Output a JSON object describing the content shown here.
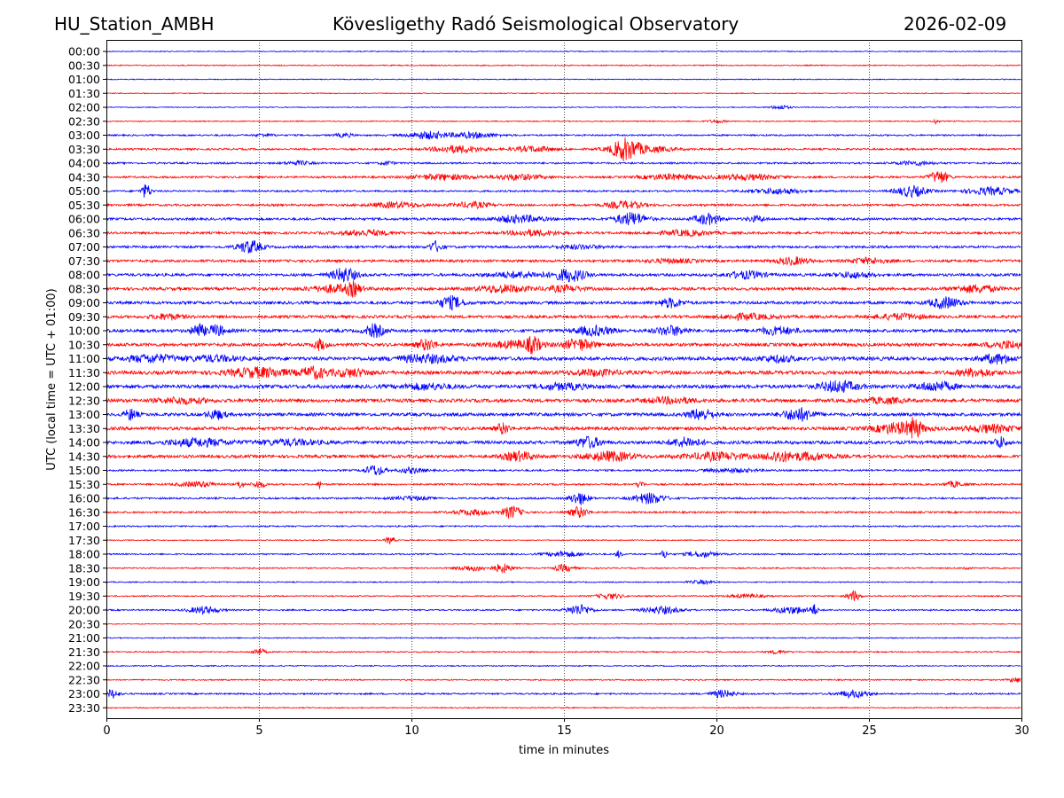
{
  "header": {
    "station": "HU_Station_AMBH",
    "observatory": "Kövesligethy Radó Seismological Observatory",
    "date": "2026-02-09"
  },
  "chart_data": {
    "type": "line",
    "title": "Kövesligethy Radó Seismological Observatory",
    "xlabel": "time in minutes",
    "ylabel": "UTC (local time = UTC + 01:00)",
    "xlim": [
      0,
      30
    ],
    "x_ticks": [
      0,
      5,
      10,
      15,
      20,
      25,
      30
    ],
    "grid": "vertical dotted lines at 5-minute intervals",
    "colors": {
      "even_row": "#0000ff",
      "odd_row": "#ff0000"
    },
    "rows": [
      {
        "label": "00:00",
        "base": 0.5,
        "events": []
      },
      {
        "label": "00:30",
        "base": 0.6,
        "events": []
      },
      {
        "label": "01:00",
        "base": 0.5,
        "events": []
      },
      {
        "label": "01:30",
        "base": 0.5,
        "events": []
      },
      {
        "label": "02:00",
        "base": 0.5,
        "events": [
          [
            22.1,
            0.3,
            2.5
          ]
        ]
      },
      {
        "label": "02:30",
        "base": 0.6,
        "events": [
          [
            20.0,
            0.3,
            1.5
          ],
          [
            27.2,
            0.1,
            2.5
          ]
        ]
      },
      {
        "label": "03:00",
        "base": 0.9,
        "events": [
          [
            5.2,
            0.3,
            1.5
          ],
          [
            7.8,
            0.3,
            2
          ],
          [
            10.5,
            0.6,
            4
          ],
          [
            12.0,
            0.8,
            3
          ]
        ]
      },
      {
        "label": "03:30",
        "base": 1.0,
        "events": [
          [
            11.5,
            0.8,
            4
          ],
          [
            14,
            0.7,
            3
          ],
          [
            17.0,
            0.4,
            10
          ],
          [
            17.5,
            1.0,
            4
          ]
        ]
      },
      {
        "label": "04:00",
        "base": 1.0,
        "events": [
          [
            6.3,
            0.4,
            2
          ],
          [
            9.2,
            0.2,
            2
          ],
          [
            26.5,
            0.6,
            2
          ]
        ]
      },
      {
        "label": "04:30",
        "base": 1.1,
        "events": [
          [
            11.0,
            1.0,
            3
          ],
          [
            13.5,
            0.8,
            3
          ],
          [
            18.5,
            0.9,
            3
          ],
          [
            21.0,
            1.0,
            3
          ],
          [
            27.3,
            0.3,
            7
          ]
        ]
      },
      {
        "label": "05:00",
        "base": 1.0,
        "events": [
          [
            1.3,
            0.15,
            8
          ],
          [
            22,
            0.8,
            3
          ],
          [
            26.4,
            0.5,
            6
          ],
          [
            29.0,
            0.8,
            4
          ]
        ]
      },
      {
        "label": "05:30",
        "base": 1.2,
        "events": [
          [
            9.5,
            0.8,
            3
          ],
          [
            12,
            0.6,
            3
          ],
          [
            17,
            0.6,
            4
          ]
        ]
      },
      {
        "label": "06:00",
        "base": 1.3,
        "events": [
          [
            13.5,
            0.8,
            4
          ],
          [
            17.2,
            0.5,
            7
          ],
          [
            19.7,
            0.4,
            6
          ],
          [
            21.3,
            0.3,
            3
          ]
        ]
      },
      {
        "label": "06:30",
        "base": 1.3,
        "events": [
          [
            8.5,
            0.8,
            3
          ],
          [
            14,
            0.8,
            3
          ],
          [
            19,
            0.8,
            3
          ]
        ]
      },
      {
        "label": "07:00",
        "base": 1.3,
        "events": [
          [
            4.7,
            0.4,
            7
          ],
          [
            10.8,
            0.2,
            6
          ],
          [
            15.5,
            0.8,
            2
          ]
        ]
      },
      {
        "label": "07:30",
        "base": 1.4,
        "events": [
          [
            18.5,
            0.8,
            2
          ],
          [
            22.5,
            0.5,
            4
          ],
          [
            25.0,
            0.6,
            3
          ]
        ]
      },
      {
        "label": "08:00",
        "base": 1.5,
        "events": [
          [
            7.8,
            0.4,
            8
          ],
          [
            13.5,
            1.0,
            3
          ],
          [
            15.2,
            0.5,
            7
          ],
          [
            21.0,
            0.6,
            4
          ],
          [
            24.5,
            0.6,
            3
          ]
        ]
      },
      {
        "label": "08:30",
        "base": 1.6,
        "events": [
          [
            7.5,
            0.8,
            4
          ],
          [
            8.1,
            0.2,
            6
          ],
          [
            13.0,
            0.8,
            4
          ],
          [
            15.0,
            0.6,
            3
          ],
          [
            28.5,
            0.7,
            4
          ]
        ]
      },
      {
        "label": "09:00",
        "base": 1.6,
        "events": [
          [
            11.3,
            0.4,
            7
          ],
          [
            18.5,
            0.4,
            5
          ],
          [
            27.5,
            0.5,
            6
          ]
        ]
      },
      {
        "label": "09:30",
        "base": 1.6,
        "events": [
          [
            2.0,
            0.5,
            3
          ],
          [
            21,
            0.8,
            3
          ],
          [
            26,
            0.8,
            3
          ]
        ]
      },
      {
        "label": "10:00",
        "base": 1.7,
        "events": [
          [
            3.0,
            0.2,
            8
          ],
          [
            3.6,
            0.3,
            6
          ],
          [
            8.8,
            0.3,
            7
          ],
          [
            16.0,
            0.6,
            5
          ],
          [
            18.5,
            0.5,
            5
          ],
          [
            22.0,
            0.6,
            4
          ]
        ]
      },
      {
        "label": "10:30",
        "base": 1.8,
        "events": [
          [
            7.0,
            0.2,
            6
          ],
          [
            10.5,
            0.3,
            6
          ],
          [
            13.5,
            0.8,
            4
          ],
          [
            14.0,
            0.2,
            7
          ],
          [
            15.5,
            0.5,
            6
          ],
          [
            29.5,
            0.6,
            4
          ]
        ]
      },
      {
        "label": "11:00",
        "base": 2.0,
        "events": [
          [
            1.5,
            0.8,
            4
          ],
          [
            3.5,
            0.8,
            3
          ],
          [
            10.5,
            1.0,
            4
          ],
          [
            22.0,
            0.6,
            3
          ],
          [
            29.2,
            0.5,
            5
          ]
        ]
      },
      {
        "label": "11:30",
        "base": 2.0,
        "events": [
          [
            5.0,
            1.0,
            5
          ],
          [
            6.8,
            0.4,
            6
          ],
          [
            8.0,
            0.6,
            4
          ],
          [
            16.0,
            0.8,
            3
          ],
          [
            28.5,
            0.6,
            4
          ]
        ]
      },
      {
        "label": "12:00",
        "base": 2.0,
        "events": [
          [
            10.5,
            0.8,
            3
          ],
          [
            15.0,
            0.8,
            3
          ],
          [
            24.0,
            0.6,
            6
          ],
          [
            27.2,
            0.6,
            5
          ]
        ]
      },
      {
        "label": "12:30",
        "base": 1.9,
        "events": [
          [
            2.5,
            0.8,
            3
          ],
          [
            18.5,
            0.8,
            3
          ],
          [
            25.5,
            0.6,
            3
          ]
        ]
      },
      {
        "label": "13:00",
        "base": 1.8,
        "events": [
          [
            0.8,
            0.2,
            6
          ],
          [
            3.6,
            0.3,
            5
          ],
          [
            19.5,
            0.4,
            6
          ],
          [
            22.7,
            0.5,
            7
          ]
        ]
      },
      {
        "label": "13:30",
        "base": 1.8,
        "events": [
          [
            13.0,
            0.2,
            6
          ],
          [
            26.0,
            0.8,
            6
          ],
          [
            26.5,
            0.2,
            8
          ],
          [
            29.0,
            0.8,
            4
          ]
        ]
      },
      {
        "label": "14:00",
        "base": 1.8,
        "events": [
          [
            3.0,
            1.0,
            4
          ],
          [
            6.0,
            1.0,
            3
          ],
          [
            15.8,
            0.4,
            6
          ],
          [
            19.0,
            0.5,
            5
          ],
          [
            29.3,
            0.2,
            6
          ]
        ]
      },
      {
        "label": "14:30",
        "base": 1.7,
        "events": [
          [
            13.5,
            0.5,
            5
          ],
          [
            16.5,
            0.8,
            5
          ],
          [
            20.0,
            1.0,
            4
          ],
          [
            22.0,
            0.4,
            5
          ],
          [
            23.0,
            0.8,
            4
          ]
        ]
      },
      {
        "label": "15:00",
        "base": 1.0,
        "events": [
          [
            8.8,
            0.3,
            6
          ],
          [
            10.0,
            0.4,
            3
          ],
          [
            20.5,
            0.8,
            2
          ]
        ]
      },
      {
        "label": "15:30",
        "base": 1.0,
        "events": [
          [
            3.0,
            0.6,
            3
          ],
          [
            4.4,
            0.1,
            5
          ],
          [
            5.0,
            0.2,
            4
          ],
          [
            7.0,
            0.05,
            6
          ],
          [
            17.5,
            0.1,
            5
          ],
          [
            27.8,
            0.3,
            3
          ]
        ]
      },
      {
        "label": "16:00",
        "base": 1.0,
        "events": [
          [
            15.5,
            0.3,
            7
          ],
          [
            17.8,
            0.5,
            6
          ],
          [
            10.0,
            0.6,
            2
          ]
        ]
      },
      {
        "label": "16:30",
        "base": 1.0,
        "events": [
          [
            12.0,
            0.6,
            3
          ],
          [
            13.3,
            0.3,
            7
          ],
          [
            15.5,
            0.3,
            6
          ]
        ]
      },
      {
        "label": "17:00",
        "base": 0.8,
        "events": []
      },
      {
        "label": "17:30",
        "base": 0.6,
        "events": [
          [
            9.3,
            0.15,
            4
          ]
        ]
      },
      {
        "label": "18:00",
        "base": 0.8,
        "events": [
          [
            15.0,
            0.6,
            3
          ],
          [
            16.8,
            0.1,
            4
          ],
          [
            18.3,
            0.1,
            5
          ],
          [
            19.5,
            0.5,
            3
          ]
        ]
      },
      {
        "label": "18:30",
        "base": 0.7,
        "events": [
          [
            12.0,
            0.5,
            3
          ],
          [
            13.0,
            0.3,
            5
          ],
          [
            15.0,
            0.3,
            4
          ],
          [
            28.2,
            0.1,
            3
          ]
        ]
      },
      {
        "label": "19:00",
        "base": 0.6,
        "events": [
          [
            19.5,
            0.4,
            2
          ]
        ]
      },
      {
        "label": "19:30",
        "base": 0.7,
        "events": [
          [
            16.5,
            0.4,
            3
          ],
          [
            21.0,
            0.6,
            2
          ],
          [
            24.5,
            0.2,
            6
          ]
        ]
      },
      {
        "label": "20:00",
        "base": 0.8,
        "events": [
          [
            3.2,
            0.5,
            4
          ],
          [
            15.5,
            0.4,
            6
          ],
          [
            18.2,
            0.6,
            4
          ],
          [
            22.5,
            0.6,
            4
          ],
          [
            23.2,
            0.1,
            6
          ]
        ]
      },
      {
        "label": "20:30",
        "base": 0.5,
        "events": []
      },
      {
        "label": "21:00",
        "base": 0.6,
        "events": []
      },
      {
        "label": "21:30",
        "base": 0.7,
        "events": [
          [
            5.0,
            0.2,
            4
          ],
          [
            22.0,
            0.3,
            2
          ]
        ]
      },
      {
        "label": "22:00",
        "base": 0.6,
        "events": []
      },
      {
        "label": "22:30",
        "base": 0.7,
        "events": [
          [
            29.8,
            0.2,
            3
          ]
        ]
      },
      {
        "label": "23:00",
        "base": 0.9,
        "events": [
          [
            0.2,
            0.2,
            5
          ],
          [
            20.2,
            0.4,
            4
          ],
          [
            24.5,
            0.5,
            4
          ]
        ]
      },
      {
        "label": "23:30",
        "base": 0.6,
        "events": []
      }
    ]
  }
}
